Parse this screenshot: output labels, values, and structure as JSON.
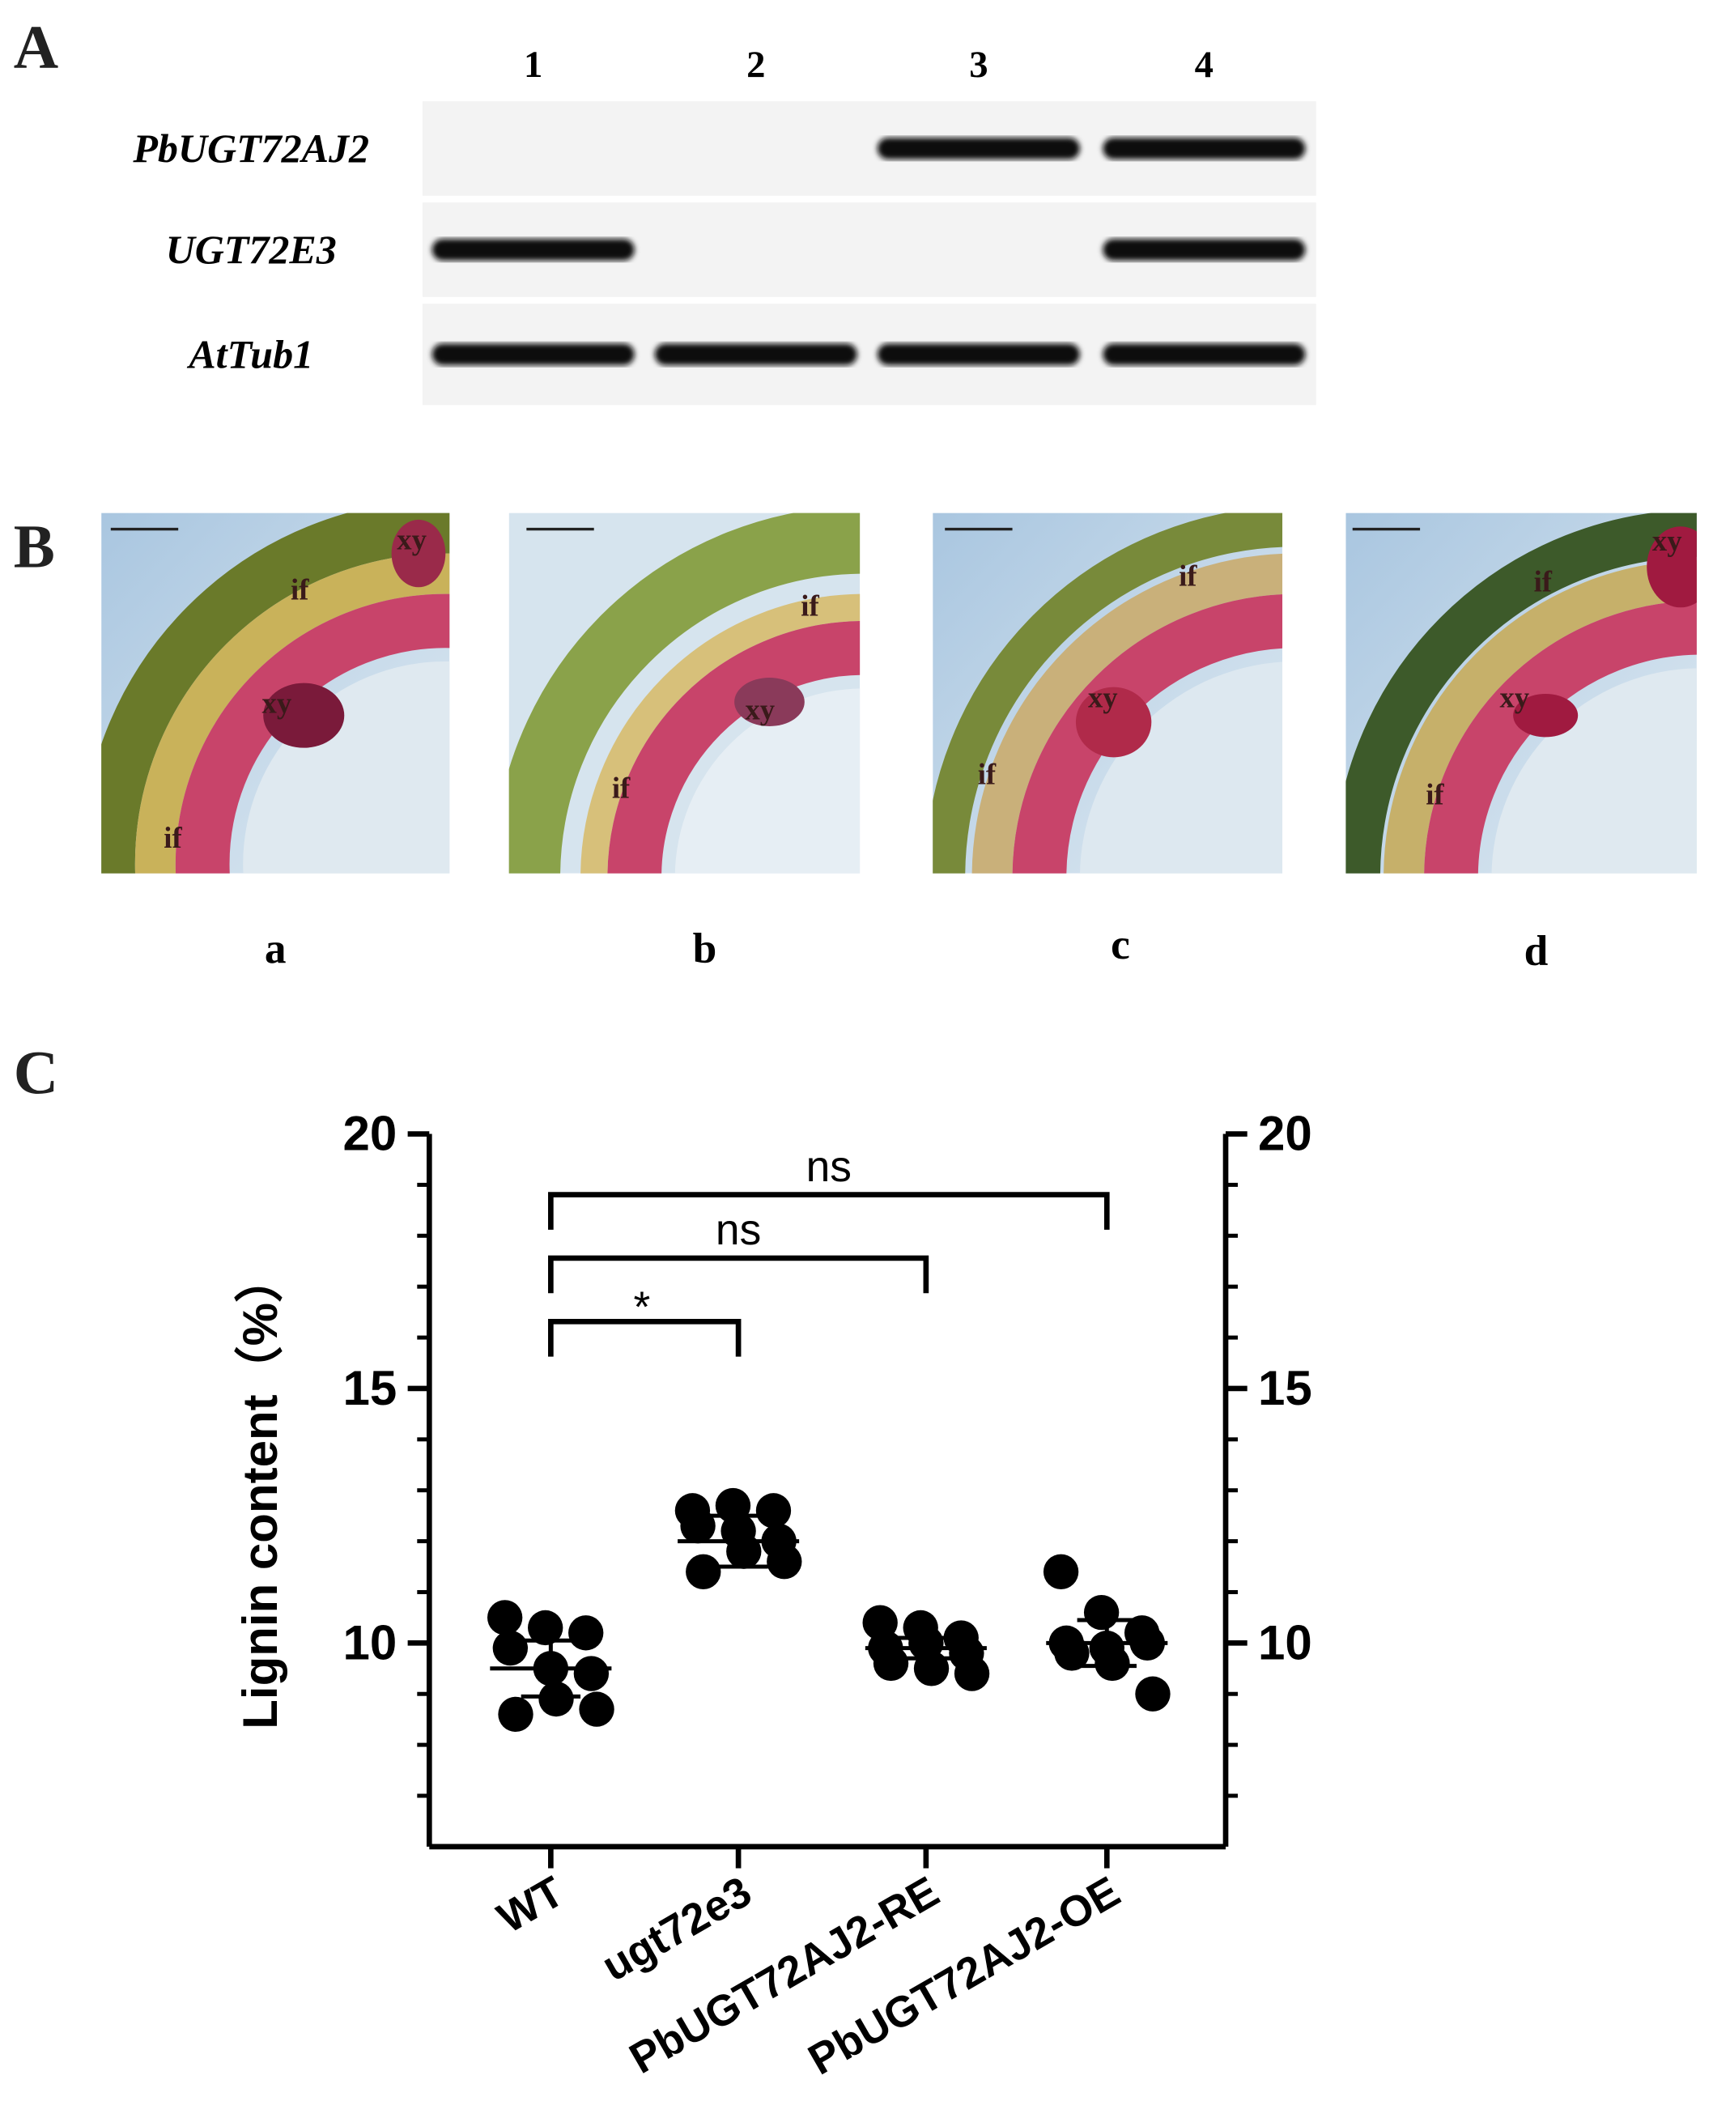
{
  "panel_labels": [
    "A",
    "B",
    "C"
  ],
  "gel": {
    "lanes": [
      "1",
      "2",
      "3",
      "4"
    ],
    "rows": [
      {
        "label": "PbUGT72AJ2",
        "bands": [
          false,
          false,
          true,
          true
        ]
      },
      {
        "label": "UGT72E3",
        "bands": [
          true,
          false,
          false,
          true
        ]
      },
      {
        "label": "AtTub1",
        "bands": [
          true,
          true,
          true,
          true
        ]
      }
    ]
  },
  "sections": [
    {
      "caption": "a",
      "labels": [
        "xy",
        "if",
        "xy",
        "if"
      ]
    },
    {
      "caption": "b",
      "labels": [
        "if",
        "xy",
        "if"
      ]
    },
    {
      "caption": "c",
      "labels": [
        "if",
        "xy",
        "if"
      ]
    },
    {
      "caption": "d",
      "labels": [
        "xy",
        "if",
        "xy",
        "if"
      ]
    }
  ],
  "chart_data": {
    "type": "dot",
    "y_label": "Lignin content（%）",
    "categories": [
      "WT",
      "ugt72e3",
      "PbUGT72AJ2-RE",
      "PbUGT72AJ2-OE"
    ],
    "points": [
      [
        10.5,
        10.3,
        10.2,
        9.9,
        9.5,
        9.4,
        8.6,
        8.9,
        8.7
      ],
      [
        12.6,
        12.7,
        12.6,
        12.3,
        12.2,
        12.0,
        11.4,
        11.8,
        11.6
      ],
      [
        10.4,
        10.3,
        10.1,
        9.9,
        10.0,
        9.8,
        9.6,
        9.5,
        9.4
      ],
      [
        11.4,
        10.6,
        10.2,
        10.0,
        9.9,
        10.0,
        9.8,
        9.6,
        9.0
      ]
    ],
    "means": [
      9.5,
      12.0,
      9.9,
      10.0
    ],
    "sd": [
      0.55,
      0.5,
      0.2,
      0.45
    ],
    "color": "#000000",
    "ylim": [
      6,
      20
    ],
    "yticks": [
      10,
      15,
      20
    ],
    "minor_yticks": [
      7,
      8,
      9,
      11,
      12,
      13,
      14,
      16,
      17,
      18,
      19
    ],
    "mirror_y": true,
    "comparisons": [
      {
        "text": "ns",
        "from": 0,
        "to": 3
      },
      {
        "text": "ns",
        "from": 0,
        "to": 2
      },
      {
        "text": "*",
        "from": 0,
        "to": 1
      }
    ]
  }
}
